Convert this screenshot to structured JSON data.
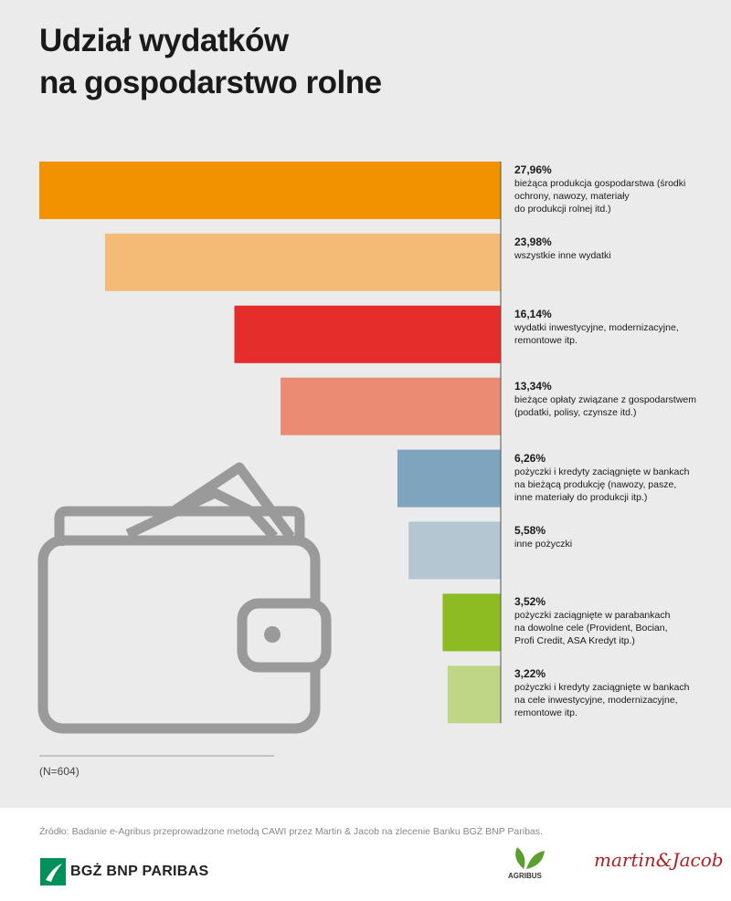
{
  "chart_data": {
    "type": "bar",
    "orientation": "horizontal-leftward",
    "title": "Udział wydatków\nna gospodarstwo rolne",
    "categories": [
      "bieżąca produkcja gospodarstwa (środki\nochrony, nawozy, materiały\ndo produkcji rolnej itd.)",
      "wszystkie inne wydatki",
      "wydatki inwestycyjne, modernizacyjne,\nremontowe itp.",
      "bieżące opłaty związane z gospodarstwem\n(podatki, polisy, czynsze itd.)",
      "pożyczki i kredyty zaciągnięte w bankach\nna bieżącą produkcję (nawozy, pasze,\ninne materiały do produkcji itp.)",
      "inne pożyczki",
      "pożyczki zaciągnięte w parabankach\nna dowolne cele (Provident, Bocian,\nProfi Credit, ASA Kredyt itp.)",
      "pożyczki i kredyty zaciągnięte w bankach\nna cele inwestycyjne, modernizacyjne,\nremontowe itp."
    ],
    "values": [
      27.96,
      23.98,
      16.14,
      13.34,
      6.26,
      5.58,
      3.52,
      3.22
    ],
    "value_labels": [
      "27,96%",
      "23,98%",
      "16,14%",
      "13,34%",
      "6,26%",
      "5,58%",
      "3,52%",
      "3,22%"
    ],
    "colors": [
      "#f39200",
      "#f4bb77",
      "#e52d2b",
      "#ec8b73",
      "#7ea5bd",
      "#b5c6d3",
      "#8cbc22",
      "#bfd687"
    ],
    "note": "(N=604)",
    "source": "Źródło: Badanie e-Agribus przeprowadzone metodą CAWI przez Martin & Jacob na zlecenie Banku BGŻ BNP Paribas.",
    "logos": [
      "BGŻ BNP PARIBAS",
      "AGRIBUS",
      "martin&Jacob"
    ]
  }
}
